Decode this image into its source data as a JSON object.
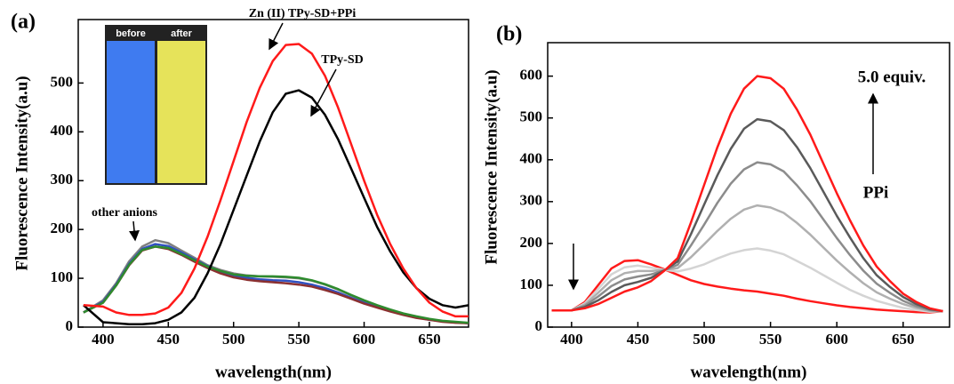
{
  "chart_data": [
    {
      "type": "line",
      "panel_label": "(a)",
      "xlabel": "wavelength(nm)",
      "ylabel": "Fluorescence Intensity(a.u)",
      "xlim": [
        381,
        680
      ],
      "ylim": [
        0,
        630
      ],
      "xticks": [
        400,
        450,
        500,
        550,
        600,
        650
      ],
      "yticks": [
        0,
        100,
        200,
        300,
        400,
        500
      ],
      "x": [
        385,
        400,
        410,
        420,
        430,
        440,
        450,
        460,
        470,
        480,
        490,
        500,
        510,
        520,
        530,
        540,
        550,
        560,
        570,
        580,
        590,
        600,
        610,
        620,
        630,
        640,
        650,
        660,
        670,
        680
      ],
      "series": [
        {
          "color": "#808080",
          "values": [
            30,
            55,
            90,
            135,
            165,
            178,
            172,
            157,
            142,
            127,
            117,
            110,
            106,
            104,
            103,
            102,
            100,
            95,
            87,
            77,
            65,
            54,
            44,
            35,
            27,
            21,
            16,
            12,
            10,
            8
          ]
        },
        {
          "color": "#3050c0",
          "values": [
            30,
            52,
            87,
            130,
            160,
            170,
            166,
            153,
            139,
            125,
            114,
            106,
            101,
            98,
            96,
            95,
            92,
            87,
            80,
            71,
            60,
            50,
            41,
            33,
            26,
            20,
            15,
            12,
            10,
            8
          ]
        },
        {
          "color": "#8b3030",
          "values": [
            30,
            50,
            85,
            127,
            157,
            165,
            160,
            148,
            134,
            121,
            110,
            102,
            97,
            94,
            92,
            90,
            87,
            83,
            76,
            68,
            58,
            48,
            40,
            32,
            25,
            19,
            15,
            11,
            9,
            8
          ]
        },
        {
          "color": "#2e8b2e",
          "values": [
            30,
            50,
            85,
            128,
            158,
            165,
            162,
            150,
            137,
            124,
            115,
            108,
            105,
            104,
            104,
            103,
            101,
            96,
            88,
            78,
            66,
            55,
            45,
            36,
            28,
            22,
            17,
            13,
            11,
            9
          ]
        },
        {
          "color": "#000000",
          "values": [
            45,
            10,
            8,
            6,
            6,
            8,
            15,
            30,
            60,
            110,
            170,
            240,
            310,
            380,
            440,
            478,
            485,
            470,
            435,
            385,
            325,
            265,
            205,
            155,
            112,
            80,
            58,
            45,
            40,
            45
          ]
        },
        {
          "color": "#ff1a1a",
          "values": [
            45,
            42,
            30,
            25,
            25,
            28,
            40,
            70,
            120,
            185,
            260,
            340,
            420,
            490,
            545,
            578,
            580,
            560,
            515,
            450,
            375,
            300,
            230,
            170,
            120,
            80,
            50,
            32,
            22,
            22
          ]
        }
      ],
      "annotations": [
        "Zn (II) TPy-SD+PPi",
        "TPy-SD",
        "other anions"
      ],
      "inset": [
        "before",
        "after"
      ]
    },
    {
      "type": "line",
      "panel_label": "(b)",
      "xlabel": "wavelength(nm)",
      "ylabel": "Fluorescence Intensity(a.u)",
      "xlim": [
        382,
        685
      ],
      "ylim": [
        0,
        680
      ],
      "xticks": [
        400,
        450,
        500,
        550,
        600,
        650
      ],
      "yticks": [
        0,
        100,
        200,
        300,
        400,
        500,
        600
      ],
      "x": [
        385,
        400,
        410,
        420,
        430,
        440,
        450,
        460,
        470,
        480,
        490,
        500,
        510,
        520,
        530,
        540,
        550,
        560,
        570,
        580,
        590,
        600,
        610,
        620,
        630,
        640,
        650,
        660,
        670,
        680
      ],
      "series": [
        {
          "color": "#ff1a1a",
          "values": [
            40,
            40,
            60,
            100,
            140,
            158,
            160,
            150,
            138,
            125,
            112,
            103,
            97,
            92,
            88,
            85,
            80,
            75,
            68,
            62,
            57,
            52,
            48,
            45,
            42,
            40,
            38,
            36,
            35,
            38
          ]
        },
        {
          "color": "#d4d4d4",
          "values": [
            40,
            40,
            57,
            91,
            126,
            143,
            147,
            142,
            137,
            133,
            140,
            150,
            164,
            176,
            184,
            188,
            183,
            174,
            158,
            142,
            124,
            106,
            89,
            75,
            63,
            54,
            46,
            41,
            37,
            38
          ]
        },
        {
          "color": "#b0b0b0",
          "values": [
            40,
            40,
            54,
            82,
            112,
            129,
            134,
            134,
            137,
            141,
            167,
            198,
            230,
            259,
            281,
            291,
            286,
            273,
            249,
            221,
            190,
            159,
            131,
            105,
            83,
            68,
            55,
            46,
            39,
            38
          ]
        },
        {
          "color": "#8c8c8c",
          "values": [
            40,
            40,
            51,
            73,
            98,
            114,
            121,
            126,
            136,
            149,
            195,
            245,
            297,
            343,
            377,
            394,
            389,
            372,
            339,
            301,
            257,
            213,
            172,
            135,
            104,
            82,
            63,
            50,
            41,
            38
          ]
        },
        {
          "color": "#5a5a5a",
          "values": [
            40,
            40,
            48,
            64,
            84,
            100,
            108,
            118,
            136,
            157,
            222,
            293,
            363,
            426,
            474,
            497,
            492,
            471,
            430,
            380,
            323,
            266,
            214,
            165,
            124,
            96,
            72,
            55,
            43,
            38
          ]
        },
        {
          "color": "#ff1a1a",
          "values": [
            40,
            40,
            45,
            55,
            70,
            85,
            95,
            110,
            135,
            165,
            250,
            340,
            430,
            510,
            570,
            600,
            595,
            570,
            520,
            460,
            390,
            320,
            255,
            195,
            145,
            110,
            80,
            60,
            45,
            38
          ]
        }
      ],
      "annotations": [
        "5.0 equiv.",
        "PPi"
      ]
    }
  ]
}
